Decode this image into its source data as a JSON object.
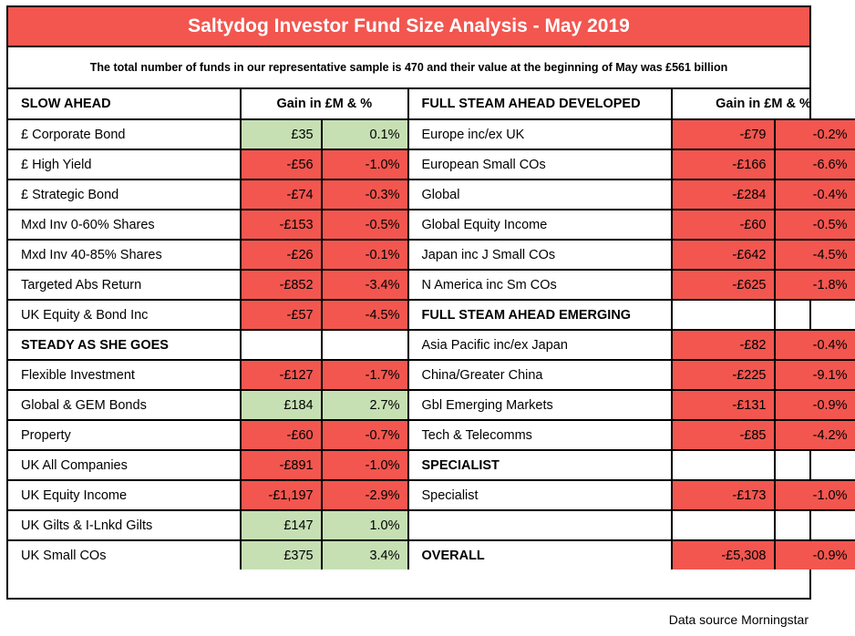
{
  "title": "Saltydog Investor Fund Size Analysis - May 2019",
  "subtitle": "The total number of funds in our representative sample is 470 and their value at the beginning of May was £561 billion",
  "colors": {
    "negative": "#f2564f",
    "positive": "#c6e0b4",
    "border": "#000000"
  },
  "gain_header": "Gain in £M & %",
  "left": [
    {
      "type": "header",
      "label": "SLOW AHEAD",
      "gain": "Gain in £M & %"
    },
    {
      "label": "£ Corporate Bond",
      "m": "£35",
      "pct": "0.1%",
      "sign": "pos"
    },
    {
      "label": "£ High Yield",
      "m": "-£56",
      "pct": "-1.0%",
      "sign": "neg"
    },
    {
      "label": "£ Strategic Bond",
      "m": "-£74",
      "pct": "-0.3%",
      "sign": "neg"
    },
    {
      "label": "Mxd Inv 0-60% Shares",
      "m": "-£153",
      "pct": "-0.5%",
      "sign": "neg"
    },
    {
      "label": "Mxd Inv 40-85% Shares",
      "m": "-£26",
      "pct": "-0.1%",
      "sign": "neg"
    },
    {
      "label": "Targeted Abs Return",
      "m": "-£852",
      "pct": "-3.4%",
      "sign": "neg"
    },
    {
      "label": "UK Equity & Bond Inc",
      "m": "-£57",
      "pct": "-4.5%",
      "sign": "neg"
    },
    {
      "type": "section",
      "label": "STEADY AS SHE GOES"
    },
    {
      "label": "Flexible Investment",
      "m": "-£127",
      "pct": "-1.7%",
      "sign": "neg"
    },
    {
      "label": "Global & GEM Bonds",
      "m": "£184",
      "pct": "2.7%",
      "sign": "pos"
    },
    {
      "label": "Property",
      "m": "-£60",
      "pct": "-0.7%",
      "sign": "neg"
    },
    {
      "label": "UK All Companies",
      "m": "-£891",
      "pct": "-1.0%",
      "sign": "neg"
    },
    {
      "label": "UK Equity Income",
      "m": "-£1,197",
      "pct": "-2.9%",
      "sign": "neg"
    },
    {
      "label": "UK Gilts & I-Lnkd Gilts",
      "m": "£147",
      "pct": "1.0%",
      "sign": "pos"
    },
    {
      "label": "UK Small COs",
      "m": "£375",
      "pct": "3.4%",
      "sign": "pos"
    }
  ],
  "right": [
    {
      "type": "header",
      "label": "FULL STEAM AHEAD DEVELOPED",
      "gain": "Gain in £M & %"
    },
    {
      "label": "Europe inc/ex UK",
      "m": "-£79",
      "pct": "-0.2%",
      "sign": "neg"
    },
    {
      "label": "European Small COs",
      "m": "-£166",
      "pct": "-6.6%",
      "sign": "neg"
    },
    {
      "label": "Global",
      "m": "-£284",
      "pct": "-0.4%",
      "sign": "neg"
    },
    {
      "label": "Global Equity Income",
      "m": "-£60",
      "pct": "-0.5%",
      "sign": "neg"
    },
    {
      "label": "Japan inc J Small COs",
      "m": "-£642",
      "pct": "-4.5%",
      "sign": "neg"
    },
    {
      "label": "N America inc Sm COs",
      "m": "-£625",
      "pct": "-1.8%",
      "sign": "neg"
    },
    {
      "type": "section",
      "label": "FULL STEAM AHEAD EMERGING"
    },
    {
      "label": "Asia Pacific inc/ex Japan",
      "m": "-£82",
      "pct": "-0.4%",
      "sign": "neg"
    },
    {
      "label": "China/Greater China",
      "m": "-£225",
      "pct": "-9.1%",
      "sign": "neg"
    },
    {
      "label": "Gbl Emerging Markets",
      "m": "-£131",
      "pct": "-0.9%",
      "sign": "neg"
    },
    {
      "label": "Tech & Telecomms",
      "m": "-£85",
      "pct": "-4.2%",
      "sign": "neg"
    },
    {
      "type": "section",
      "label": "SPECIALIST"
    },
    {
      "label": "Specialist",
      "m": "-£173",
      "pct": "-1.0%",
      "sign": "neg"
    },
    {
      "type": "blank"
    },
    {
      "type": "section",
      "label": "OVERALL",
      "m": "-£5,308",
      "pct": "-0.9%",
      "sign": "neg"
    }
  ],
  "source": "Data source Morningstar"
}
